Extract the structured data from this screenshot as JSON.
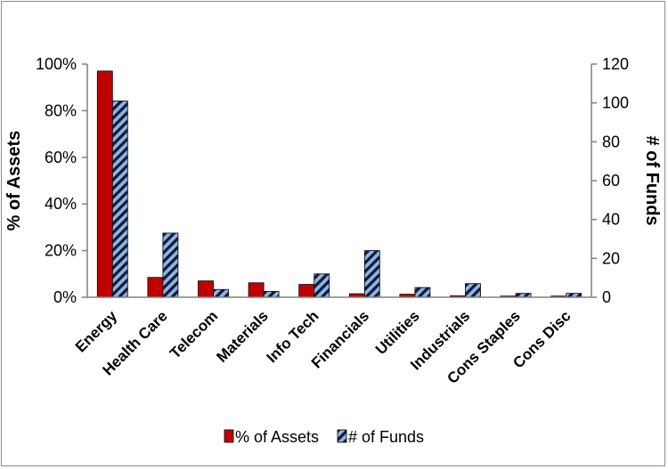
{
  "chart_data": {
    "type": "bar",
    "categories": [
      "Energy",
      "Health Care",
      "Telecom",
      "Materials",
      "Info Tech",
      "Financials",
      "Utilities",
      "Industrials",
      "Cons Staples",
      "Cons Disc"
    ],
    "series": [
      {
        "name": "% of Assets",
        "axis": "left",
        "color": "#c00000",
        "values": [
          97,
          8.5,
          7,
          6.2,
          5.5,
          1.5,
          1.3,
          0.6,
          0.5,
          0.5
        ]
      },
      {
        "name": "# of Funds",
        "axis": "right",
        "color": "#8db3e2",
        "pattern": "diagonal-stripes",
        "values": [
          101,
          33,
          4,
          3,
          12,
          24,
          5,
          7,
          2,
          2
        ]
      }
    ],
    "ylabel": "% of Assets",
    "y2label": "# of Funds",
    "ylim": [
      0,
      100
    ],
    "y2lim": [
      0,
      120
    ],
    "yticks": [
      "0%",
      "20%",
      "40%",
      "60%",
      "80%",
      "100%"
    ],
    "y2ticks": [
      "0",
      "20",
      "40",
      "60",
      "80",
      "100",
      "120"
    ],
    "grid": false,
    "legend_position": "bottom"
  }
}
